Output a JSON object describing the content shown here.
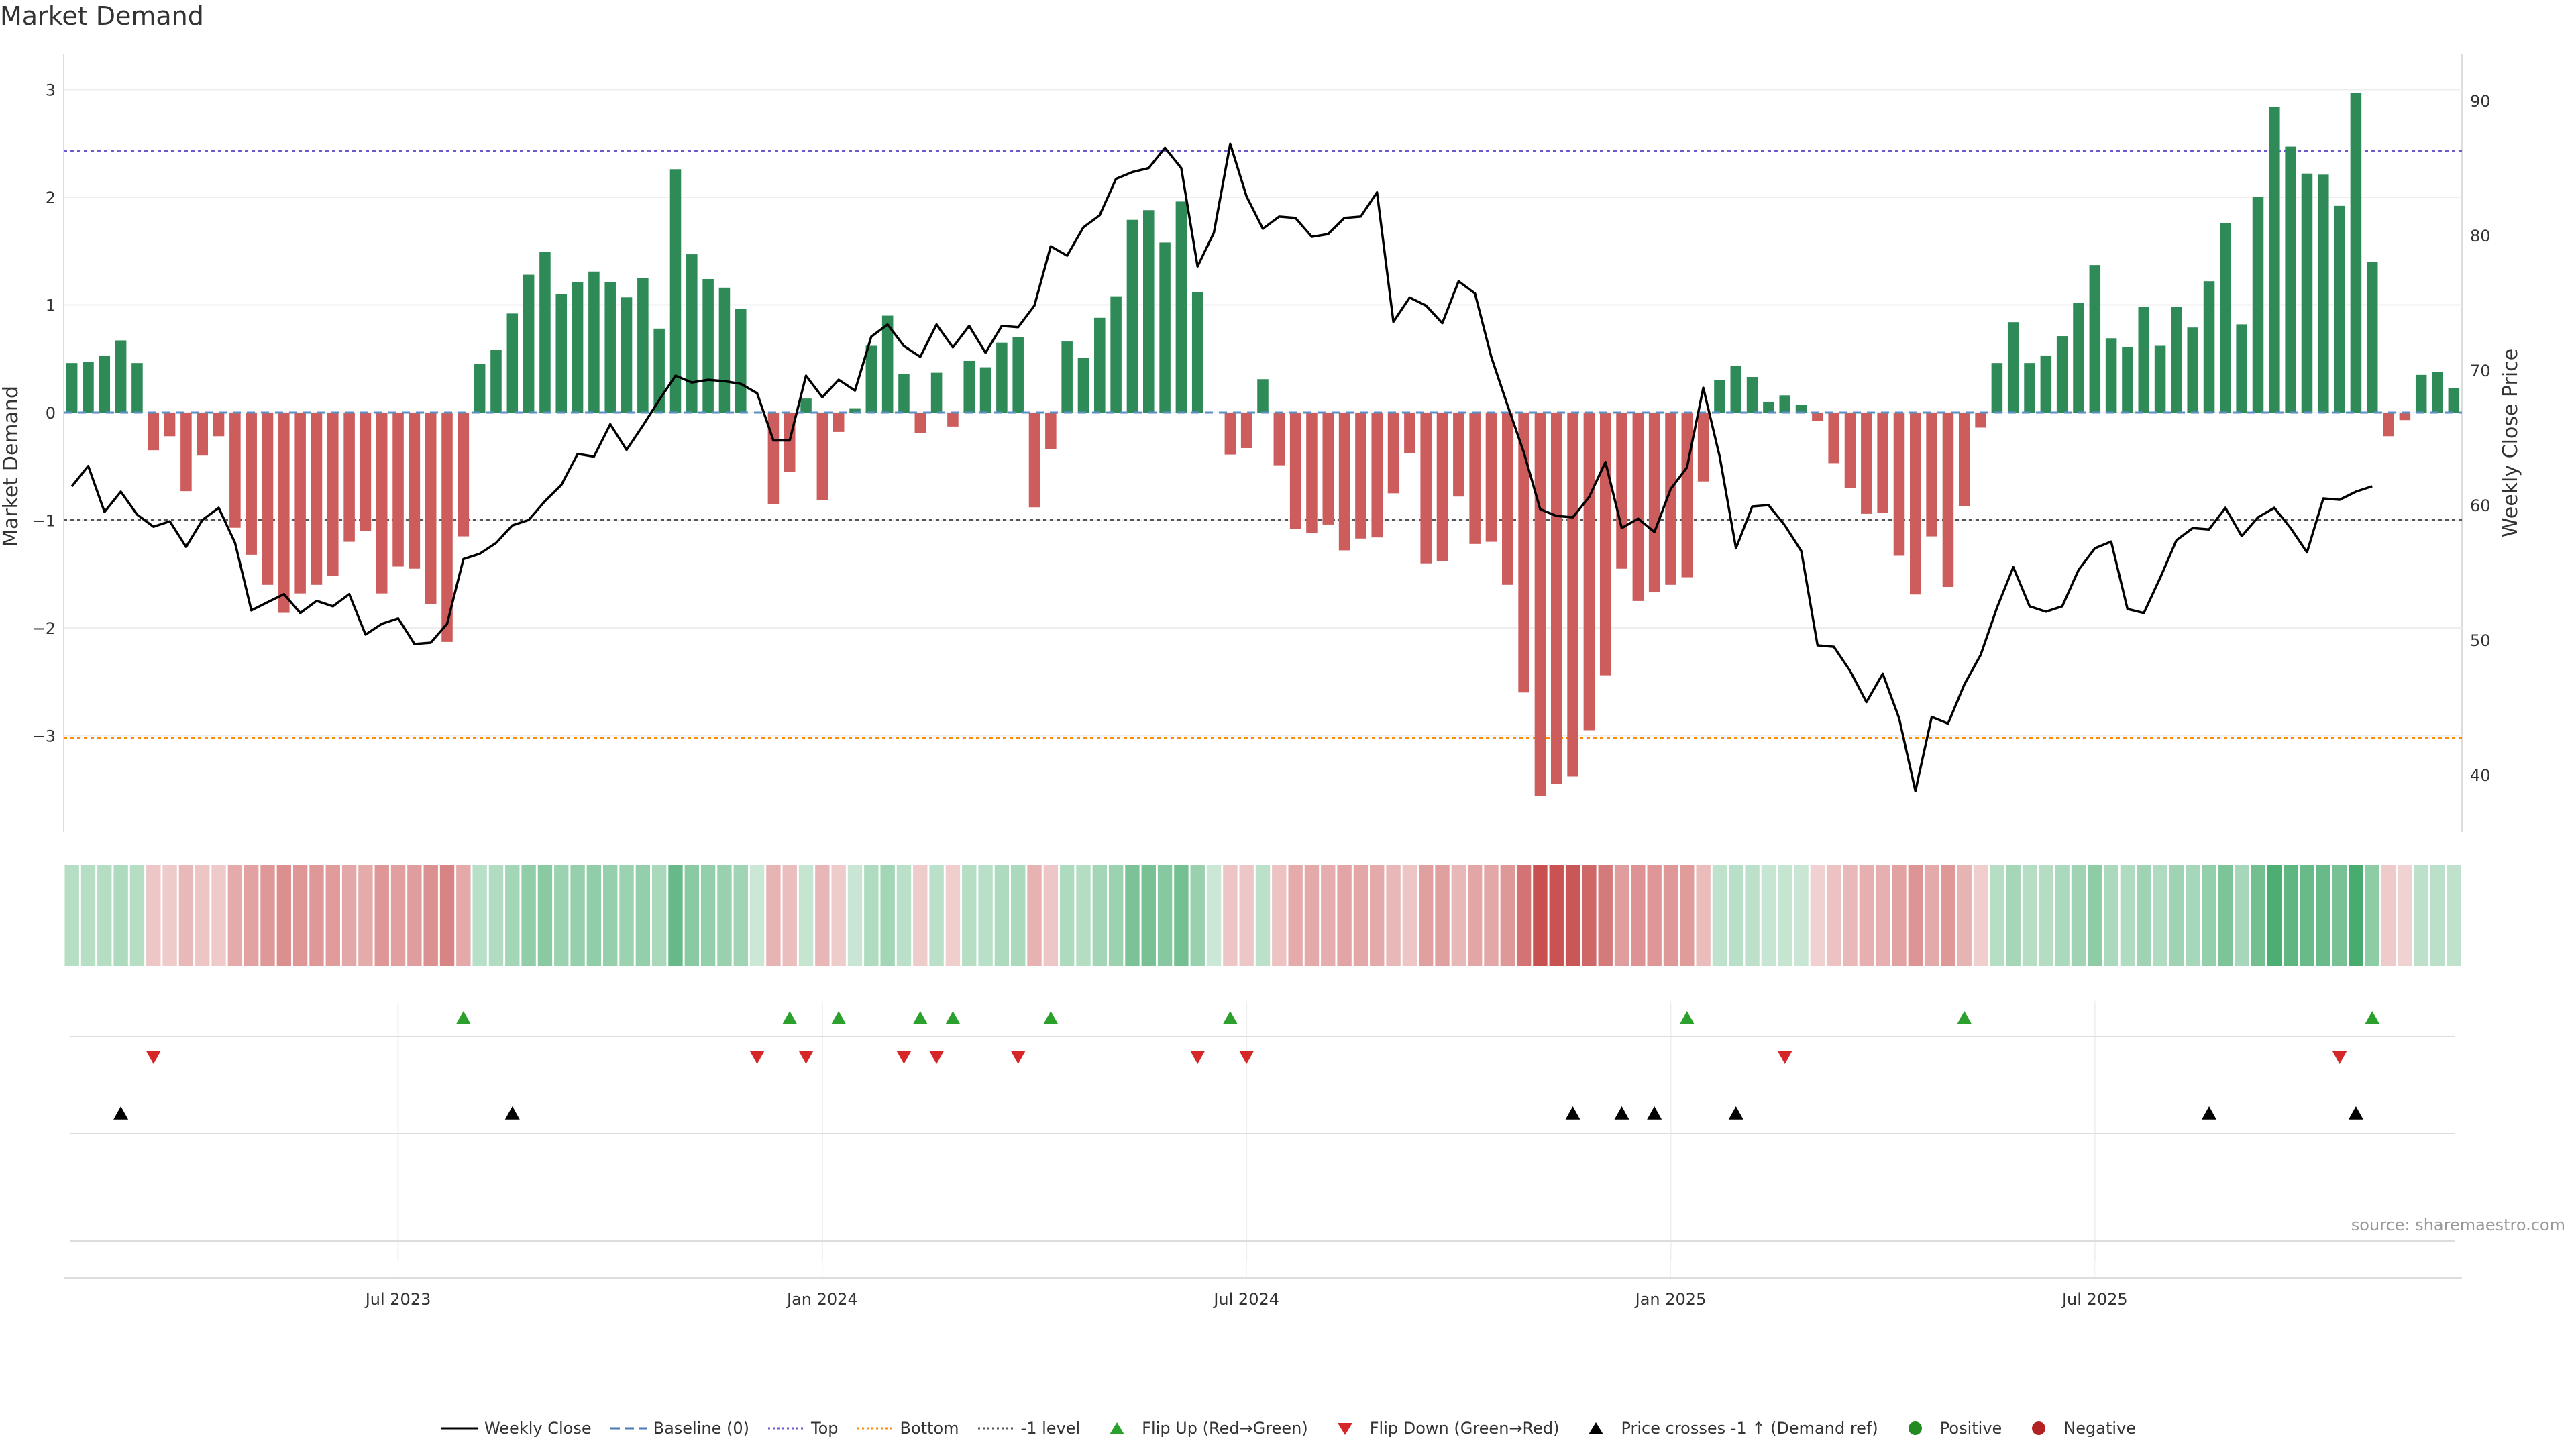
{
  "title": "Market Demand",
  "source": "source: sharemaestro.com",
  "colors": {
    "positive": "#2e8b57",
    "negative": "#cd5c5c",
    "price": "#000000",
    "top": "#6a5acd",
    "bottom": "#ff8c00",
    "minus1": "#555555",
    "flip_up": "#2ca02c",
    "flip_down": "#d62728",
    "cross": "#000000",
    "pos_dot": "#228b22",
    "neg_dot": "#b22222"
  },
  "legend": [
    {
      "label": "Weekly Close",
      "symbol": "solid-line"
    },
    {
      "label": "Baseline (0)",
      "symbol": "dashed-line"
    },
    {
      "label": "Top",
      "symbol": "dotted-top"
    },
    {
      "label": "Bottom",
      "symbol": "dotted-bottom"
    },
    {
      "label": "-1 level",
      "symbol": "dotted-minus1"
    },
    {
      "label": "Flip Up (Red→Green)",
      "symbol": "triangle-up-green"
    },
    {
      "label": "Flip Down (Green→Red)",
      "symbol": "triangle-down-red"
    },
    {
      "label": "Price crosses -1 ↑ (Demand ref)",
      "symbol": "triangle-up-black"
    },
    {
      "label": "Positive",
      "symbol": "dot-green"
    },
    {
      "label": "Negative",
      "symbol": "dot-red"
    }
  ],
  "chart_data": {
    "type": "bar",
    "title": "Market Demand",
    "ylabel": "Market Demand",
    "y2label": "Weekly Close Price",
    "ylim": [
      -3.9,
      3.3
    ],
    "y2lim": [
      36.5,
      91.5
    ],
    "yticks": [
      "3",
      "2",
      "1",
      "0",
      "−1",
      "−2",
      "−3"
    ],
    "y2ticks": [
      "90",
      "80",
      "70",
      "60",
      "50",
      "40"
    ],
    "xticks": [
      {
        "label": "Jul 2023",
        "week": 20
      },
      {
        "label": "Jan 2024",
        "week": 46
      },
      {
        "label": "Jul 2024",
        "week": 72
      },
      {
        "label": "Jan 2025",
        "week": 98
      },
      {
        "label": "Jul 2025",
        "week": 124
      }
    ],
    "reference_lines": {
      "baseline": 0,
      "top": 2.43,
      "bottom": -3.02,
      "minus1": -1.0
    },
    "demand": [
      0.46,
      0.47,
      0.53,
      0.67,
      0.46,
      -0.35,
      -0.22,
      -0.73,
      -0.4,
      -0.22,
      -1.07,
      -1.32,
      -1.6,
      -1.86,
      -1.68,
      -1.6,
      -1.52,
      -1.2,
      -1.1,
      -1.68,
      -1.43,
      -1.45,
      -1.78,
      -2.13,
      -1.15,
      0.45,
      0.58,
      0.92,
      1.28,
      1.49,
      1.1,
      1.21,
      1.31,
      1.21,
      1.07,
      1.25,
      0.78,
      2.26,
      1.47,
      1.24,
      1.16,
      0.96,
      0.0,
      -0.85,
      -0.55,
      0.13,
      -0.81,
      -0.18,
      0.04,
      0.62,
      0.9,
      0.36,
      -0.19,
      0.37,
      -0.13,
      0.48,
      0.42,
      0.65,
      0.7,
      -0.88,
      -0.34,
      0.66,
      0.51,
      0.88,
      1.08,
      1.79,
      1.88,
      1.58,
      1.96,
      1.12,
      0.0,
      -0.39,
      -0.33,
      0.31,
      -0.49,
      -1.08,
      -1.12,
      -1.04,
      -1.28,
      -1.17,
      -1.16,
      -0.75,
      -0.38,
      -1.4,
      -1.38,
      -0.78,
      -1.22,
      -1.2,
      -1.6,
      -2.6,
      -3.56,
      -3.45,
      -3.38,
      -2.95,
      -2.44,
      -1.45,
      -1.75,
      -1.67,
      -1.6,
      -1.53,
      -0.64,
      0.3,
      0.43,
      0.33,
      0.1,
      0.16,
      0.07,
      -0.08,
      -0.47,
      -0.7,
      -0.94,
      -0.93,
      -1.33,
      -1.69,
      -1.15,
      -1.62,
      -0.87,
      -0.14,
      0.46,
      0.84,
      0.46,
      0.53,
      0.71,
      1.02,
      1.37,
      0.69,
      0.61,
      0.98,
      0.62,
      0.98,
      0.79,
      1.22,
      1.76,
      0.82,
      2.0,
      2.84,
      2.47,
      2.22,
      2.21,
      1.92,
      2.97,
      1.4,
      -0.22,
      -0.07,
      0.35,
      0.38,
      0.23
    ],
    "weekly_close": [
      61.4,
      62.9,
      59.5,
      61.0,
      59.3,
      58.4,
      58.8,
      56.9,
      58.9,
      59.8,
      57.2,
      52.2,
      52.8,
      53.4,
      52.0,
      52.9,
      52.5,
      53.4,
      50.4,
      51.2,
      51.6,
      49.7,
      49.8,
      51.2,
      56.0,
      56.4,
      57.2,
      58.5,
      58.9,
      60.3,
      61.5,
      63.8,
      63.6,
      66.0,
      64.1,
      65.9,
      67.8,
      69.6,
      69.1,
      69.3,
      69.2,
      69.0,
      68.3,
      64.8,
      64.8,
      69.6,
      68.0,
      69.3,
      68.5,
      72.5,
      73.4,
      71.8,
      71.0,
      73.4,
      71.7,
      73.3,
      71.3,
      73.3,
      73.2,
      74.8,
      79.2,
      78.5,
      80.6,
      81.5,
      84.2,
      84.7,
      85.0,
      86.5,
      85.0,
      77.7,
      80.2,
      86.8,
      82.9,
      80.5,
      81.4,
      81.3,
      79.9,
      80.1,
      81.3,
      81.4,
      83.2,
      73.6,
      75.4,
      74.8,
      73.5,
      76.6,
      75.7,
      71.0,
      67.4,
      63.9,
      59.7,
      59.2,
      59.1,
      60.6,
      63.2,
      58.3,
      59.0,
      58.0,
      61.2,
      62.8,
      68.7,
      63.6,
      56.8,
      59.9,
      60.0,
      58.5,
      56.6,
      49.6,
      49.5,
      47.7,
      45.4,
      47.5,
      44.2,
      38.8,
      44.3,
      43.8,
      46.7,
      48.9,
      52.4,
      55.4,
      52.5,
      52.1,
      52.5,
      55.2,
      56.8,
      57.3,
      52.3,
      52.0,
      54.6,
      57.4,
      58.3,
      58.2,
      59.8,
      57.7,
      59.1,
      59.8,
      58.3,
      56.5,
      60.5,
      60.4,
      61.0,
      61.4
    ],
    "flip_up_weeks": [
      24,
      44,
      47,
      52,
      54,
      60,
      71,
      99,
      116,
      141
    ],
    "flip_down_weeks": [
      5,
      42,
      45,
      51,
      53,
      58,
      69,
      72,
      105,
      139
    ],
    "price_cross_up_weeks": [
      3,
      27,
      92,
      95,
      97,
      102,
      131,
      140
    ]
  }
}
